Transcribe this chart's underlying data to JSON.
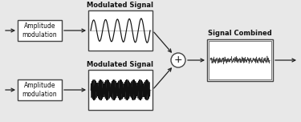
{
  "bg_color": "#e8e8e8",
  "box_color": "#ffffff",
  "box_edge": "#444444",
  "arrow_color": "#222222",
  "text_color": "#111111",
  "title_top": "Modulated Signal",
  "title_top2": "Modulated Signal",
  "title_right": "Signal Combined",
  "amp_mod_label": "Amplitude\nmodulation",
  "amp_mod_label2": "Amplitude\nmodulation",
  "plus_symbol": "+",
  "fig_width": 3.75,
  "fig_height": 1.52,
  "dpi": 100
}
